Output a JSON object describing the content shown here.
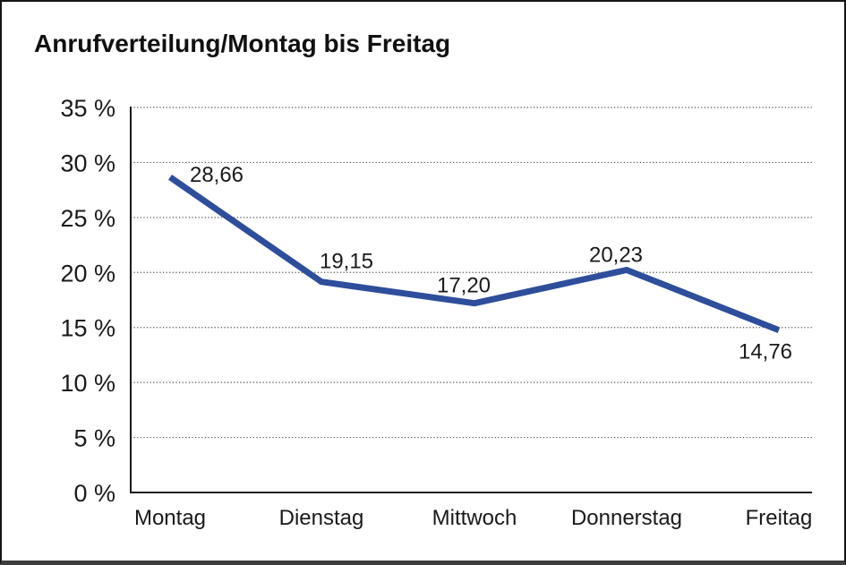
{
  "window": {
    "background": "#ffffff",
    "frame_border_color": "#161616",
    "frame_bottom_bar_color": "#3d3d3d"
  },
  "chart_data": {
    "type": "line",
    "title": "Anrufverteilung/Montag bis Freitag",
    "categories": [
      "Montag",
      "Dienstag",
      "Mittwoch",
      "Donnerstag",
      "Freitag"
    ],
    "values": [
      28.66,
      19.15,
      17.2,
      20.23,
      14.76
    ],
    "point_labels": [
      "28,66",
      "19,15",
      "17,20",
      "20,23",
      "14,76"
    ],
    "y_tick_labels": [
      "0 %",
      "5 %",
      "10 %",
      "15 %",
      "20 %",
      "25 %",
      "30 %",
      "35 %"
    ],
    "ylim": [
      0,
      35
    ],
    "y_step": 5,
    "xlabel": "",
    "ylabel": "",
    "legend": "none",
    "grid": "horizontal-dotted",
    "line_color": "#2E4E9C",
    "axis_color": "#1a1a1a",
    "gridline_color": "#4d4d4d",
    "label_color": "#1a1a1a"
  }
}
